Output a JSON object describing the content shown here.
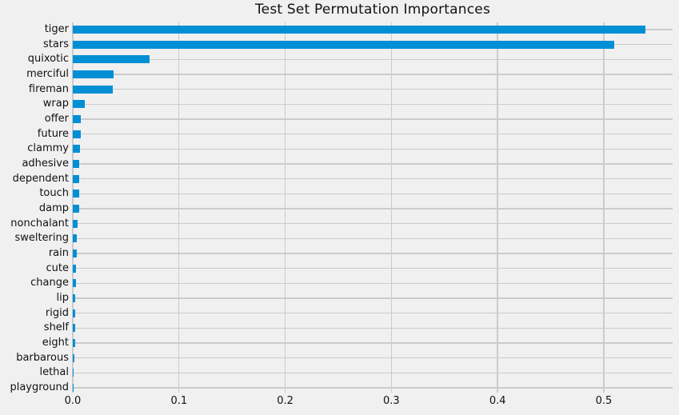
{
  "chart_data": {
    "type": "bar",
    "orientation": "horizontal",
    "title": "Test Set Permutation Importances",
    "xlabel": "",
    "ylabel": "",
    "categories": [
      "tiger",
      "stars",
      "quixotic",
      "merciful",
      "fireman",
      "wrap",
      "offer",
      "future",
      "clammy",
      "adhesive",
      "dependent",
      "touch",
      "damp",
      "nonchalant",
      "sweltering",
      "rain",
      "cute",
      "change",
      "lip",
      "rigid",
      "shelf",
      "eight",
      "barbarous",
      "lethal",
      "playground"
    ],
    "values": [
      0.539,
      0.51,
      0.0725,
      0.0384,
      0.0376,
      0.0113,
      0.0078,
      0.0076,
      0.0066,
      0.0064,
      0.0059,
      0.0058,
      0.0057,
      0.0046,
      0.004,
      0.0039,
      0.0033,
      0.003,
      0.0026,
      0.0025,
      0.0024,
      0.0023,
      0.0018,
      0.001,
      0.0002
    ],
    "xlim": [
      0,
      0.5648
    ],
    "xticks": [
      "0.0",
      "0.1",
      "0.2",
      "0.3",
      "0.4",
      "0.5"
    ],
    "xtick_values": [
      0.0,
      0.1,
      0.2,
      0.3,
      0.4,
      0.5
    ],
    "grid": true,
    "legend": null,
    "style": "fivethirtyeight",
    "colors": {
      "bar": "#008fd5",
      "background": "#f0f0f0",
      "grid": "#cbcbcb",
      "text": "#111111"
    }
  }
}
